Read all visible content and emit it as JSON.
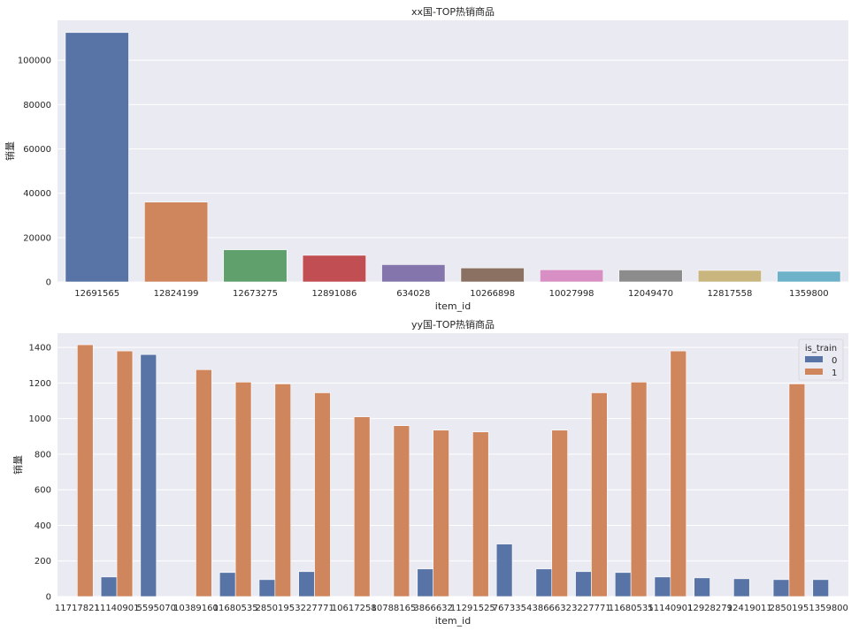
{
  "chart_data": [
    {
      "type": "bar",
      "title": "xx国-TOP热销商品",
      "xlabel": "item_id",
      "ylabel": "销量",
      "ylim": [
        0,
        118000
      ],
      "yticks": [
        0,
        20000,
        40000,
        60000,
        80000,
        100000
      ],
      "grid": true,
      "categories": [
        "12691565",
        "12824199",
        "12673275",
        "12891086",
        "634028",
        "10266898",
        "10027998",
        "12049470",
        "12817558",
        "1359800"
      ],
      "values": [
        112500,
        36000,
        14500,
        12000,
        7800,
        6300,
        5500,
        5400,
        5200,
        4800
      ],
      "colors": [
        "#5874a6",
        "#d0865d",
        "#5fa06c",
        "#c04e52",
        "#8475ad",
        "#8b7161",
        "#d78fc4",
        "#8c8c8c",
        "#c9b67e",
        "#6db2c9"
      ]
    },
    {
      "type": "bar",
      "title": "yy国-TOP热销商品",
      "xlabel": "item_id",
      "ylabel": "销量",
      "ylim": [
        0,
        1480
      ],
      "yticks": [
        0,
        200,
        400,
        600,
        800,
        1000,
        1200,
        1400
      ],
      "grid": true,
      "legend": {
        "title": "is_train",
        "placement": "top-right"
      },
      "categories": [
        "11717821",
        "11140901",
        "5595070",
        "10389160",
        "11680535",
        "2850195",
        "3227771",
        "10617258",
        "10788165",
        "3866632",
        "11291525",
        "7673354",
        "3866632",
        "3227771",
        "11680535",
        "11140901",
        "12928279",
        "12419011",
        "2850195",
        "1359800"
      ],
      "series": [
        {
          "name": "0",
          "color": "#5874a6",
          "values": [
            0,
            110,
            1360,
            0,
            135,
            95,
            140,
            0,
            0,
            155,
            0,
            295,
            155,
            140,
            135,
            110,
            105,
            100,
            95,
            95
          ]
        },
        {
          "name": "1",
          "color": "#d0865d",
          "values": [
            1415,
            1380,
            0,
            1275,
            1205,
            1195,
            1145,
            1010,
            960,
            935,
            925,
            0,
            935,
            1145,
            1205,
            1380,
            0,
            0,
            1195,
            0
          ]
        }
      ]
    }
  ]
}
